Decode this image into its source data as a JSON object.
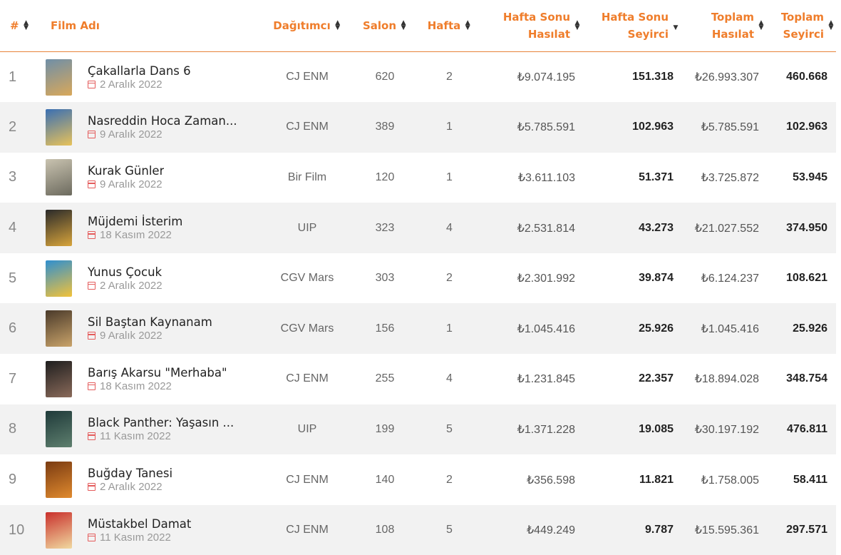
{
  "headers": {
    "rank": "#",
    "film": "Film Adı",
    "distributor": "Dağıtımcı",
    "screens": "Salon",
    "week": "Hafta",
    "weekend_gross_1": "Hafta Sonu",
    "weekend_gross_2": "Hasılat",
    "weekend_adm_1": "Hafta Sonu",
    "weekend_adm_2": "Seyirci",
    "total_gross_1": "Toplam",
    "total_gross_2": "Hasılat",
    "total_adm_1": "Toplam",
    "total_adm_2": "Seyirci"
  },
  "rows": [
    {
      "rank": "1",
      "title": "Çakallarla Dans 6",
      "date": "2 Aralık 2022",
      "distributor": "CJ ENM",
      "screens": "620",
      "week": "2",
      "weekend_gross": "₺9.074.195",
      "weekend_adm": "151.318",
      "total_gross": "₺26.993.307",
      "total_adm": "460.668",
      "poster": [
        "#6f8fa8",
        "#d9a85a"
      ]
    },
    {
      "rank": "2",
      "title": "Nasreddin Hoca Zaman...",
      "date": "9 Aralık 2022",
      "distributor": "CJ ENM",
      "screens": "389",
      "week": "1",
      "weekend_gross": "₺5.785.591",
      "weekend_adm": "102.963",
      "total_gross": "₺5.785.591",
      "total_adm": "102.963",
      "poster": [
        "#3a6fb3",
        "#e8c25a"
      ]
    },
    {
      "rank": "3",
      "title": "Kurak Günler",
      "date": "9 Aralık 2022",
      "distributor": "Bir Film",
      "screens": "120",
      "week": "1",
      "weekend_gross": "₺3.611.103",
      "weekend_adm": "51.371",
      "total_gross": "₺3.725.872",
      "total_adm": "53.945",
      "poster": [
        "#c9c3b0",
        "#6c6a5e"
      ]
    },
    {
      "rank": "4",
      "title": "Müjdemi İsterim",
      "date": "18 Kasım 2022",
      "distributor": "UIP",
      "screens": "323",
      "week": "4",
      "weekend_gross": "₺2.531.814",
      "weekend_adm": "43.273",
      "total_gross": "₺21.027.552",
      "total_adm": "374.950",
      "poster": [
        "#2a2a2a",
        "#d8a43b"
      ]
    },
    {
      "rank": "5",
      "title": "Yunus Çocuk",
      "date": "2 Aralık 2022",
      "distributor": "CGV Mars",
      "screens": "303",
      "week": "2",
      "weekend_gross": "₺2.301.992",
      "weekend_adm": "39.874",
      "total_gross": "₺6.124.237",
      "total_adm": "108.621",
      "poster": [
        "#2f8fd0",
        "#f2c23a"
      ]
    },
    {
      "rank": "6",
      "title": "Sil Baştan Kaynanam",
      "date": "9 Aralık 2022",
      "distributor": "CGV Mars",
      "screens": "156",
      "week": "1",
      "weekend_gross": "₺1.045.416",
      "weekend_adm": "25.926",
      "total_gross": "₺1.045.416",
      "total_adm": "25.926",
      "poster": [
        "#4a3a2a",
        "#c9a36a"
      ]
    },
    {
      "rank": "7",
      "title": "Barış Akarsu \"Merhaba\"",
      "date": "18 Kasım 2022",
      "distributor": "CJ ENM",
      "screens": "255",
      "week": "4",
      "weekend_gross": "₺1.231.845",
      "weekend_adm": "22.357",
      "total_gross": "₺18.894.028",
      "total_adm": "348.754",
      "poster": [
        "#1e1e1e",
        "#8a6a5a"
      ]
    },
    {
      "rank": "8",
      "title": "Black Panther: Yaşasın ...",
      "date": "11 Kasım 2022",
      "distributor": "UIP",
      "screens": "199",
      "week": "5",
      "weekend_gross": "₺1.371.228",
      "weekend_adm": "19.085",
      "total_gross": "₺30.197.192",
      "total_adm": "476.811",
      "poster": [
        "#1f3a3a",
        "#5e7f6e"
      ]
    },
    {
      "rank": "9",
      "title": "Buğday Tanesi",
      "date": "2 Aralık 2022",
      "distributor": "CJ ENM",
      "screens": "140",
      "week": "2",
      "weekend_gross": "₺356.598",
      "weekend_adm": "11.821",
      "total_gross": "₺1.758.005",
      "total_adm": "58.411",
      "poster": [
        "#7a3b12",
        "#e08a2e"
      ]
    },
    {
      "rank": "10",
      "title": "Müstakbel Damat",
      "date": "11 Kasım 2022",
      "distributor": "CJ ENM",
      "screens": "108",
      "week": "5",
      "weekend_gross": "₺449.249",
      "weekend_adm": "9.787",
      "total_gross": "₺15.595.361",
      "total_adm": "297.571",
      "poster": [
        "#c9302c",
        "#f0d9a0"
      ]
    }
  ]
}
